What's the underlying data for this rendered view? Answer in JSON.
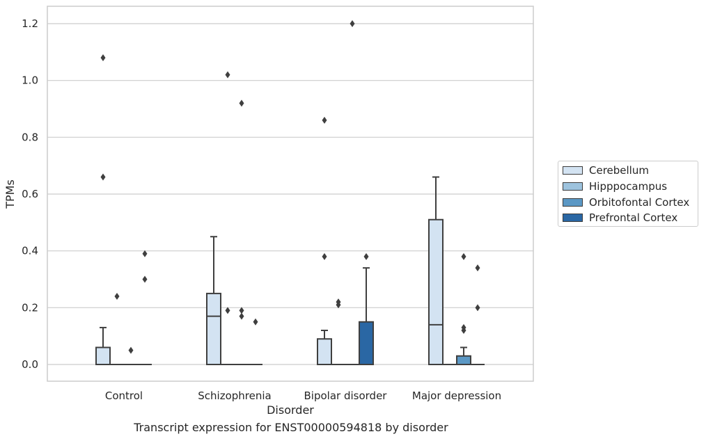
{
  "chart_data": {
    "type": "box",
    "xlabel": "Disorder",
    "ylabel": "TPMs",
    "caption": "Transcript expression for ENST00000594818 by disorder",
    "categories": [
      "Control",
      "Schizophrenia",
      "Bipolar disorder",
      "Major depression"
    ],
    "ylim": [
      -0.06,
      1.26
    ],
    "yticks": [
      "0.0",
      "0.2",
      "0.4",
      "0.6",
      "0.8",
      "1.0",
      "1.2"
    ],
    "ytick_values": [
      0,
      0.2,
      0.4,
      0.6,
      0.8,
      1.0,
      1.2
    ],
    "grid": true,
    "legend_position": "right",
    "series": [
      {
        "name": "Cerebellum",
        "color": "#d3e3f2",
        "boxes": [
          {
            "q1": 0,
            "median": 0,
            "q3": 0.06,
            "whisker_low": 0,
            "whisker_high": 0.13,
            "outliers": [
              0.66,
              1.08
            ]
          },
          {
            "q1": 0,
            "median": 0.17,
            "q3": 0.25,
            "whisker_low": 0,
            "whisker_high": 0.45,
            "outliers": []
          },
          {
            "q1": 0,
            "median": 0,
            "q3": 0.09,
            "whisker_low": 0,
            "whisker_high": 0.12,
            "outliers": [
              0.38,
              0.86
            ]
          },
          {
            "q1": 0,
            "median": 0.14,
            "q3": 0.51,
            "whisker_low": 0,
            "whisker_high": 0.66,
            "outliers": []
          }
        ]
      },
      {
        "name": "Hipppocampus",
        "color": "#9dc3de",
        "boxes": [
          {
            "q1": 0,
            "median": 0,
            "q3": 0,
            "whisker_low": 0,
            "whisker_high": 0,
            "outliers": [
              0.24
            ]
          },
          {
            "q1": 0,
            "median": 0,
            "q3": 0,
            "whisker_low": 0,
            "whisker_high": 0,
            "outliers": [
              0.19,
              1.02
            ]
          },
          {
            "q1": 0,
            "median": 0,
            "q3": 0,
            "whisker_low": 0,
            "whisker_high": 0,
            "outliers": [
              0.21,
              0.22
            ]
          },
          {
            "q1": 0,
            "median": 0,
            "q3": 0,
            "whisker_low": 0,
            "whisker_high": 0,
            "outliers": []
          }
        ]
      },
      {
        "name": "Orbitofontal Cortex",
        "color": "#5b98c5",
        "boxes": [
          {
            "q1": 0,
            "median": 0,
            "q3": 0,
            "whisker_low": 0,
            "whisker_high": 0,
            "outliers": [
              0.05
            ]
          },
          {
            "q1": 0,
            "median": 0,
            "q3": 0,
            "whisker_low": 0,
            "whisker_high": 0,
            "outliers": [
              0.17,
              0.19,
              0.92
            ]
          },
          {
            "q1": 0,
            "median": 0,
            "q3": 0,
            "whisker_low": 0,
            "whisker_high": 0,
            "outliers": [
              1.2
            ]
          },
          {
            "q1": 0,
            "median": 0,
            "q3": 0.03,
            "whisker_low": 0,
            "whisker_high": 0.06,
            "outliers": [
              0.12,
              0.13,
              0.38
            ]
          }
        ]
      },
      {
        "name": "Prefrontal Cortex",
        "color": "#2a67a4",
        "boxes": [
          {
            "q1": 0,
            "median": 0,
            "q3": 0,
            "whisker_low": 0,
            "whisker_high": 0,
            "outliers": [
              0.3,
              0.39
            ]
          },
          {
            "q1": 0,
            "median": 0,
            "q3": 0,
            "whisker_low": 0,
            "whisker_high": 0,
            "outliers": [
              0.15
            ]
          },
          {
            "q1": 0,
            "median": 0,
            "q3": 0.15,
            "whisker_low": 0,
            "whisker_high": 0.34,
            "outliers": [
              0.38
            ]
          },
          {
            "q1": 0,
            "median": 0,
            "q3": 0,
            "whisker_low": 0,
            "whisker_high": 0,
            "outliers": [
              0.2,
              0.34
            ]
          }
        ]
      }
    ]
  }
}
